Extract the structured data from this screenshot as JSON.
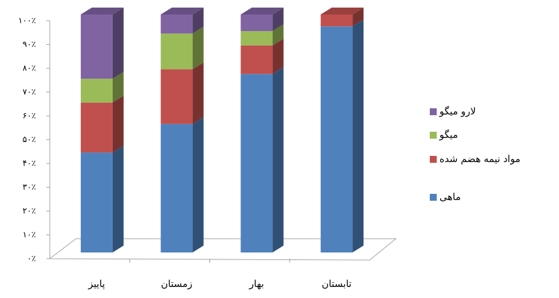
{
  "chart_data": {
    "type": "bar3d_stacked",
    "categories": [
      "پاییز",
      "زمستان",
      "بهار",
      "تابستان"
    ],
    "series": [
      {
        "name": "ماهی",
        "color": "#4f81bd",
        "values": [
          42,
          54,
          75,
          95
        ]
      },
      {
        "name": "مواد نیمه هضم شده",
        "color": "#c0504d",
        "values": [
          21,
          23,
          12,
          5
        ]
      },
      {
        "name": "میگو",
        "color": "#9bbb59",
        "values": [
          10,
          15,
          6,
          0
        ]
      },
      {
        "name": "لارو میگو",
        "color": "#8064a2",
        "values": [
          27,
          8,
          7,
          0
        ]
      }
    ],
    "ylim": [
      0,
      100
    ],
    "yticks": [
      {
        "value": 0,
        "label": "۰٪"
      },
      {
        "value": 10,
        "label": "۱۰٪"
      },
      {
        "value": 20,
        "label": "۲۰٪"
      },
      {
        "value": 30,
        "label": "۳۰٪"
      },
      {
        "value": 40,
        "label": "۴۰٪"
      },
      {
        "value": 50,
        "label": "۵۰٪"
      },
      {
        "value": 60,
        "label": "۶۰٪"
      },
      {
        "value": 70,
        "label": "۷۰٪"
      },
      {
        "value": 80,
        "label": "۸۰٪"
      },
      {
        "value": 90,
        "label": "۹۰٪"
      },
      {
        "value": 100,
        "label": "۱۰۰٪"
      }
    ],
    "legend": "right"
  }
}
